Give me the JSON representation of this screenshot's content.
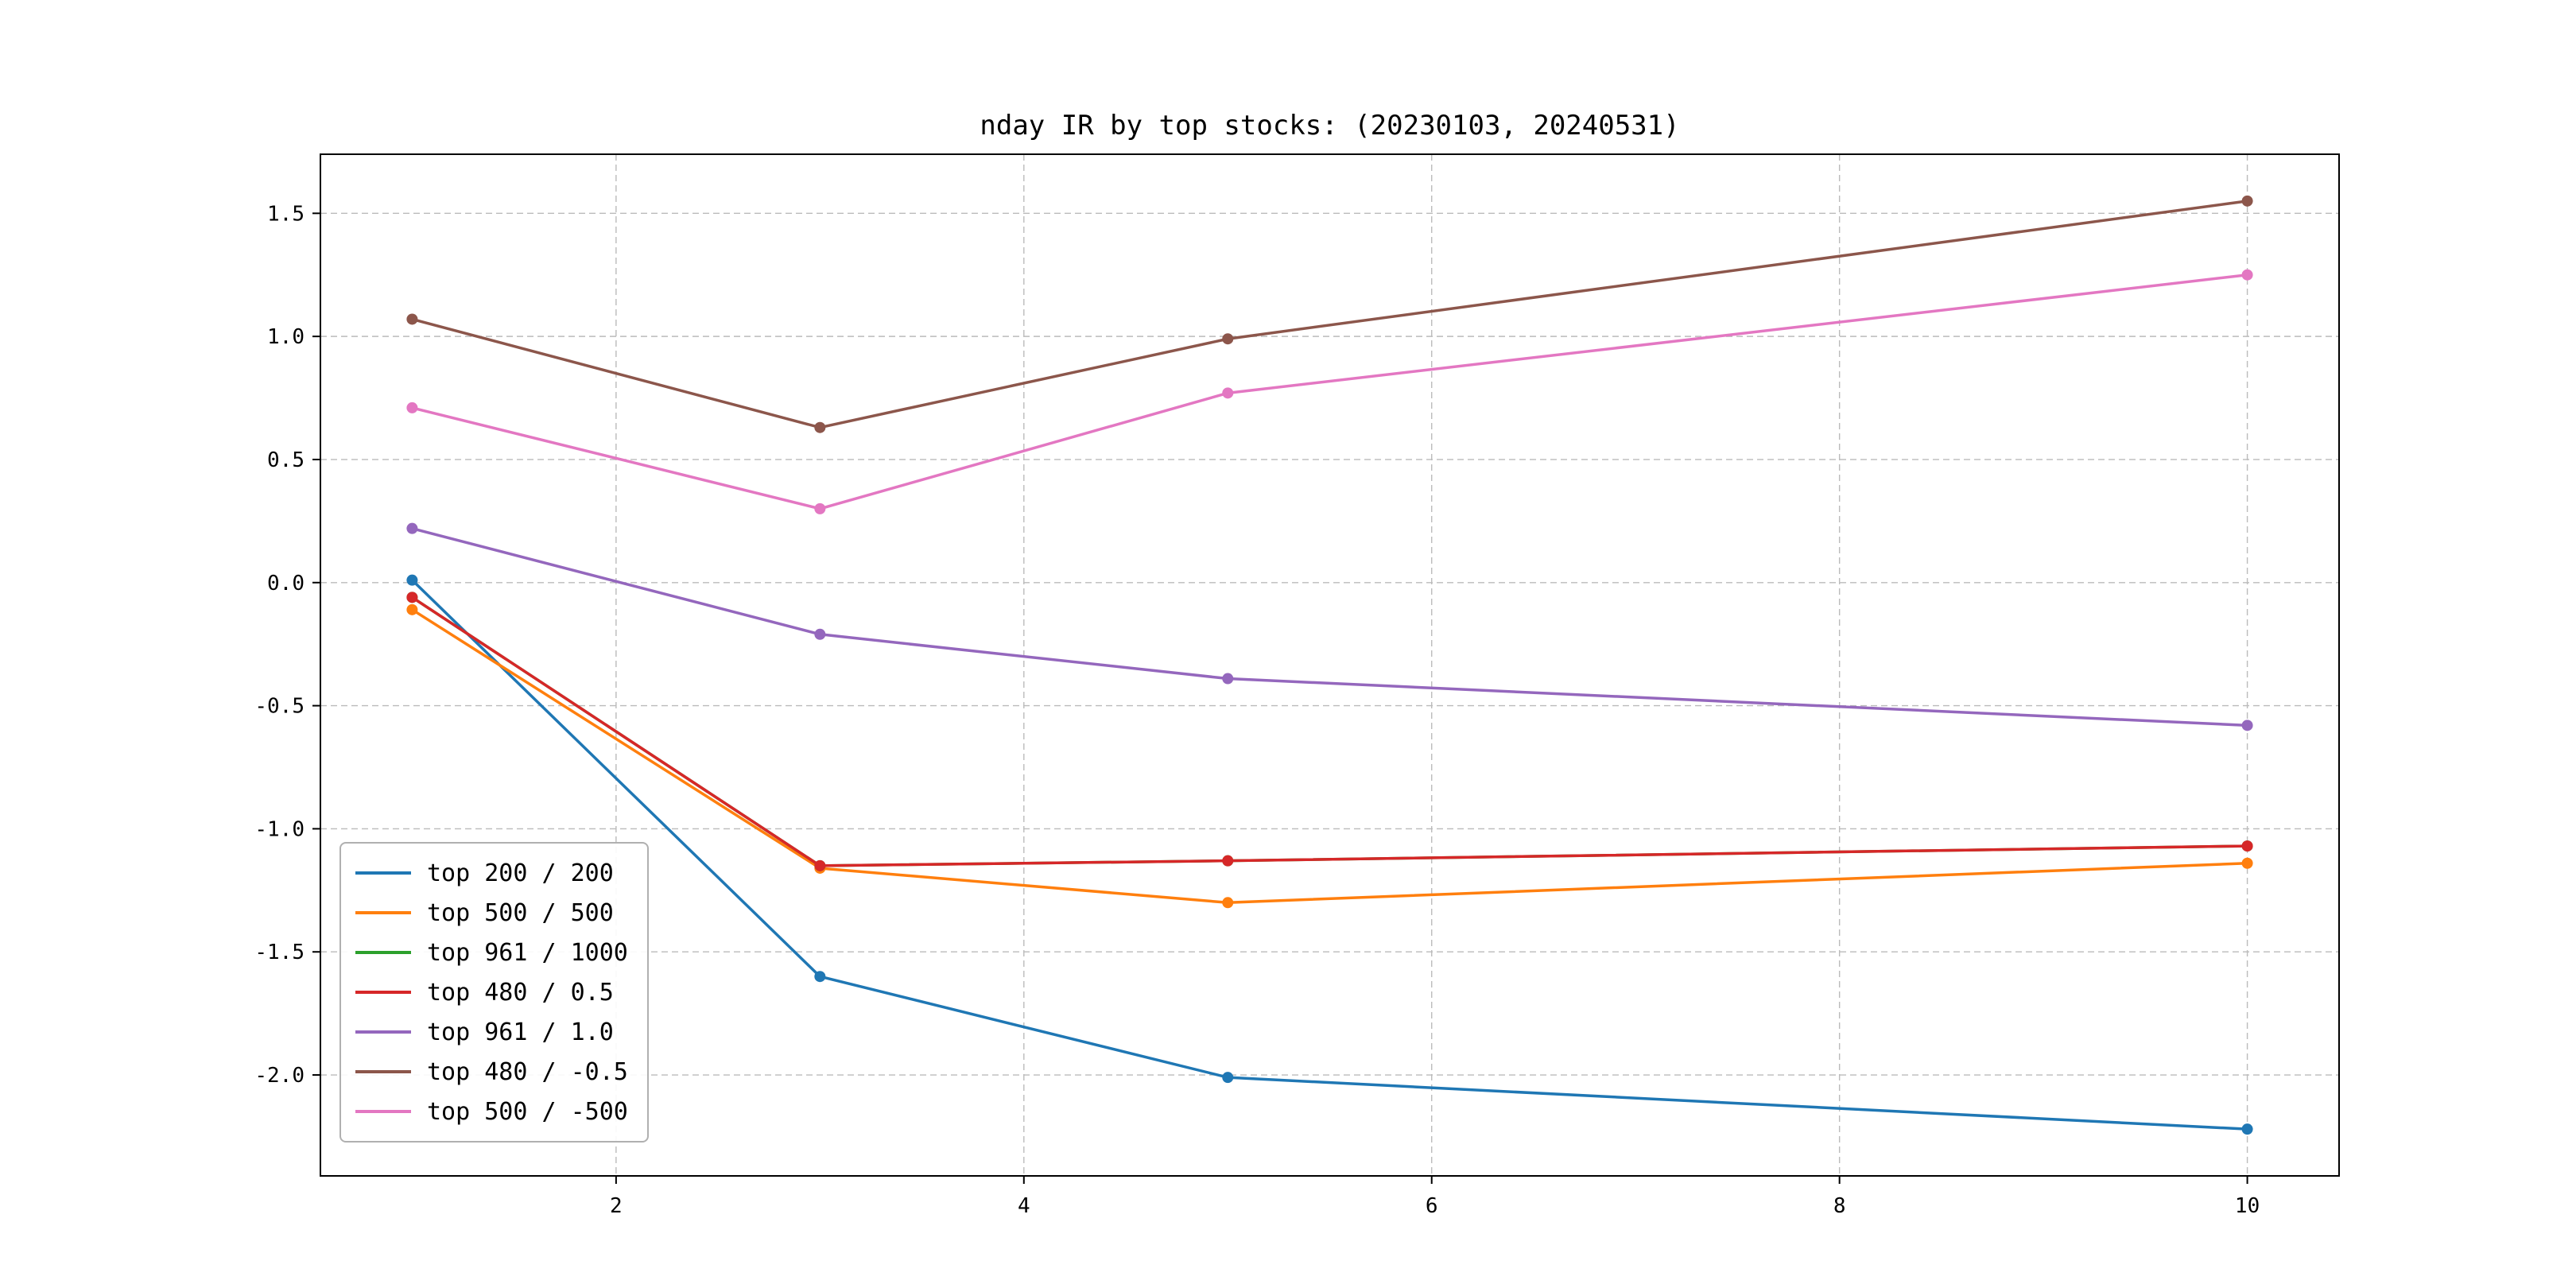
{
  "figure": {
    "title": "nday IR by top stocks: (20230103, 20240531)"
  },
  "chart_data": {
    "type": "line",
    "title": "nday IR by top stocks: (20230103, 20240531)",
    "x": [
      1,
      3,
      5,
      10
    ],
    "series": [
      {
        "name": "top 200 / 200",
        "color": "#1f77b4",
        "values": [
          0.01,
          -1.6,
          -2.01,
          -2.22
        ]
      },
      {
        "name": "top 500 / 500",
        "color": "#ff7f0e",
        "values": [
          -0.11,
          -1.16,
          -1.3,
          -1.14
        ]
      },
      {
        "name": "top 961 / 1000",
        "color": "#2ca02c",
        "values": [
          -0.06,
          -1.15,
          -1.13,
          -1.07
        ]
      },
      {
        "name": "top 480 / 0.5",
        "color": "#d62728",
        "values": [
          -0.06,
          -1.15,
          -1.13,
          -1.07
        ]
      },
      {
        "name": "top 961 / 1.0",
        "color": "#9467bd",
        "values": [
          0.22,
          -0.21,
          -0.39,
          -0.58
        ]
      },
      {
        "name": "top 480 / -0.5",
        "color": "#8c564b",
        "values": [
          1.07,
          0.63,
          0.99,
          1.55
        ]
      },
      {
        "name": "top 500 / -500",
        "color": "#e377c2",
        "values": [
          0.71,
          0.3,
          0.77,
          1.25
        ]
      }
    ],
    "xlim": [
      0.55,
      10.45
    ],
    "ylim": [
      -2.41,
      1.74
    ],
    "xticks": [
      2,
      4,
      6,
      8,
      10
    ],
    "yticks": [
      -2.0,
      -1.5,
      -1.0,
      -0.5,
      0.0,
      0.5,
      1.0,
      1.5
    ],
    "grid": true,
    "grid_style": "dashed",
    "legend_position": "lower left",
    "marker": "o",
    "xlabel": "",
    "ylabel": ""
  }
}
